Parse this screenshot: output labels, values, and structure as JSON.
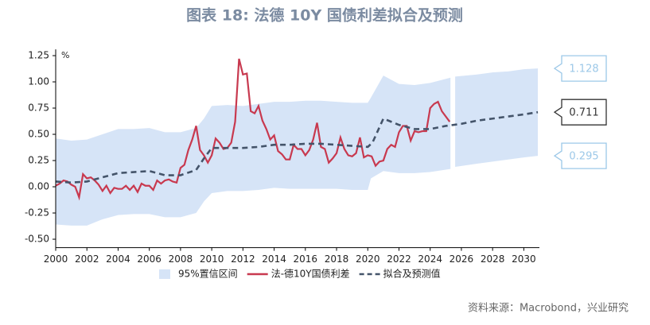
{
  "chart_data": {
    "type": "line",
    "title": "图表 18: 法德 10Y 国债利差拟合及预测",
    "source": "资料来源：Macrobond，兴业研究",
    "y_unit": "%",
    "xlim": [
      2000,
      2031
    ],
    "xticks": [
      2000,
      2002,
      2004,
      2006,
      2008,
      2010,
      2012,
      2014,
      2016,
      2018,
      2020,
      2022,
      2024,
      2026,
      2028,
      2030
    ],
    "ylim": [
      -0.58,
      1.31
    ],
    "yticks": [
      {
        "value": -0.5,
        "label": "-0.50"
      },
      {
        "value": -0.25,
        "label": "-0.25"
      },
      {
        "value": 0,
        "label": "0.00"
      },
      {
        "value": 0.25,
        "label": "0.25"
      },
      {
        "value": 0.5,
        "label": "0.50"
      },
      {
        "value": 0.75,
        "label": "0.75"
      },
      {
        "value": 1,
        "label": "1.00"
      },
      {
        "value": 1.25,
        "label": "1.25"
      }
    ],
    "grid": false,
    "series": [
      {
        "name": "95%置信区间",
        "kind": "band",
        "color": "#d6e4f7",
        "x": [
          2000,
          2001,
          2002,
          2003,
          2004,
          2005,
          2006,
          2007,
          2008,
          2009,
          2009.5,
          2010,
          2011,
          2012,
          2013,
          2014,
          2015,
          2016,
          2017,
          2018,
          2019,
          2020,
          2020.2,
          2021,
          2022,
          2023,
          2024,
          2025.3,
          2025.45,
          2025.6,
          2027,
          2028,
          2029,
          2030,
          2030.9
        ],
        "upper": [
          0.46,
          0.44,
          0.45,
          0.5,
          0.55,
          0.55,
          0.56,
          0.52,
          0.52,
          0.56,
          0.65,
          0.77,
          0.78,
          0.77,
          0.79,
          0.81,
          0.81,
          0.82,
          0.82,
          0.81,
          0.8,
          0.8,
          0.85,
          1.06,
          0.98,
          0.97,
          0.99,
          1.04,
          null,
          1.05,
          1.07,
          1.09,
          1.1,
          1.12,
          1.128
        ],
        "lower": [
          -0.36,
          -0.37,
          -0.37,
          -0.31,
          -0.27,
          -0.26,
          -0.26,
          -0.29,
          -0.29,
          -0.25,
          -0.14,
          -0.06,
          -0.04,
          -0.04,
          -0.03,
          -0.01,
          -0.02,
          -0.02,
          -0.02,
          -0.02,
          -0.03,
          -0.03,
          0.08,
          0.15,
          0.13,
          0.13,
          0.14,
          0.17,
          null,
          0.19,
          0.22,
          0.24,
          0.26,
          0.28,
          0.295
        ]
      },
      {
        "name": "法-德10Y国债利差",
        "kind": "line",
        "color": "#c8394f",
        "dash": false,
        "x": [
          2000,
          2000.25,
          2000.5,
          2000.75,
          2001,
          2001.25,
          2001.5,
          2001.75,
          2002,
          2002.25,
          2002.5,
          2002.75,
          2003,
          2003.25,
          2003.5,
          2003.75,
          2004,
          2004.25,
          2004.5,
          2004.75,
          2005,
          2005.25,
          2005.5,
          2005.75,
          2006,
          2006.25,
          2006.5,
          2006.75,
          2007,
          2007.25,
          2007.5,
          2007.75,
          2008,
          2008.25,
          2008.5,
          2008.75,
          2009,
          2009.25,
          2009.5,
          2009.75,
          2010,
          2010.25,
          2010.5,
          2010.75,
          2011,
          2011.25,
          2011.5,
          2011.75,
          2012,
          2012.25,
          2012.5,
          2012.75,
          2013,
          2013.25,
          2013.5,
          2013.75,
          2014,
          2014.25,
          2014.5,
          2014.75,
          2015,
          2015.25,
          2015.5,
          2015.75,
          2016,
          2016.25,
          2016.5,
          2016.75,
          2017,
          2017.25,
          2017.5,
          2017.75,
          2018,
          2018.25,
          2018.5,
          2018.75,
          2019,
          2019.25,
          2019.5,
          2019.75,
          2020,
          2020.25,
          2020.5,
          2020.75,
          2021,
          2021.25,
          2021.5,
          2021.75,
          2022,
          2022.25,
          2022.5,
          2022.75,
          2023,
          2023.25,
          2023.5,
          2023.75,
          2024,
          2024.25,
          2024.5,
          2024.75,
          2025.25
        ],
        "values": [
          0.01,
          0.03,
          0.06,
          0.05,
          0.02,
          0.0,
          -0.1,
          0.12,
          0.08,
          0.09,
          0.06,
          0.02,
          -0.04,
          0.01,
          -0.06,
          -0.01,
          -0.02,
          -0.02,
          0.01,
          -0.03,
          0.01,
          -0.05,
          0.03,
          0.01,
          0.01,
          -0.03,
          0.06,
          0.03,
          0.06,
          0.07,
          0.05,
          0.04,
          0.18,
          0.21,
          0.35,
          0.45,
          0.58,
          0.35,
          0.3,
          0.23,
          0.3,
          0.46,
          0.42,
          0.36,
          0.37,
          0.42,
          0.62,
          1.22,
          1.07,
          1.08,
          0.72,
          0.7,
          0.77,
          0.63,
          0.55,
          0.45,
          0.49,
          0.34,
          0.31,
          0.26,
          0.26,
          0.4,
          0.36,
          0.36,
          0.3,
          0.35,
          0.45,
          0.61,
          0.38,
          0.36,
          0.23,
          0.27,
          0.32,
          0.47,
          0.36,
          0.3,
          0.29,
          0.32,
          0.47,
          0.28,
          0.3,
          0.29,
          0.2,
          0.24,
          0.25,
          0.36,
          0.4,
          0.38,
          0.52,
          0.58,
          0.58,
          0.44,
          0.53,
          0.52,
          0.53,
          0.53,
          0.75,
          0.79,
          0.81,
          0.72,
          0.62
        ]
      },
      {
        "name": "拟合及预测值",
        "kind": "line",
        "color": "#44546a",
        "dash": true,
        "x": [
          2000,
          2001,
          2002,
          2003,
          2004,
          2005,
          2006,
          2007,
          2008,
          2009,
          2009.5,
          2010,
          2011,
          2012,
          2013,
          2014,
          2015,
          2016,
          2017,
          2018,
          2019,
          2020,
          2020.3,
          2021,
          2022,
          2023,
          2024,
          2025,
          2026,
          2027,
          2028,
          2029,
          2030,
          2030.9
        ],
        "values": [
          0.05,
          0.04,
          0.05,
          0.09,
          0.13,
          0.14,
          0.15,
          0.11,
          0.11,
          0.16,
          0.27,
          0.37,
          0.37,
          0.37,
          0.38,
          0.4,
          0.4,
          0.41,
          0.41,
          0.4,
          0.39,
          0.38,
          0.42,
          0.65,
          0.59,
          0.55,
          0.55,
          0.58,
          0.6,
          0.63,
          0.65,
          0.67,
          0.69,
          0.711
        ]
      }
    ],
    "annotations": [
      1.128,
      0.711,
      0.295
    ],
    "annotation_colors": [
      "#9cc8e8",
      "#333333",
      "#9cc8e8"
    ]
  }
}
